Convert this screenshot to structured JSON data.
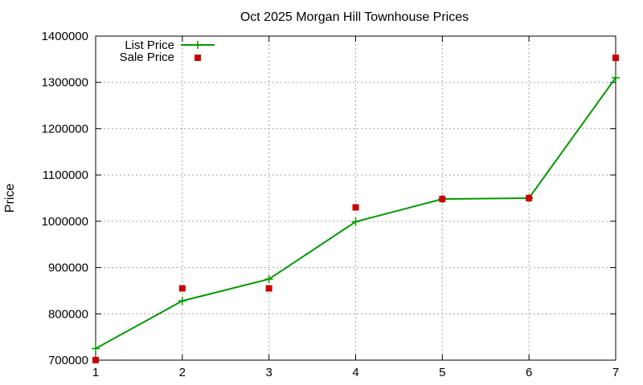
{
  "chart_data": {
    "type": "line",
    "title": "Oct 2025 Morgan Hill Townhouse Prices",
    "xlabel": "",
    "ylabel": "Price",
    "x": [
      1,
      2,
      3,
      4,
      5,
      6,
      7
    ],
    "xlim": [
      1,
      7
    ],
    "ylim": [
      700000,
      1400000
    ],
    "xticks": [
      1,
      2,
      3,
      4,
      5,
      6,
      7
    ],
    "yticks": [
      700000,
      800000,
      900000,
      1000000,
      1100000,
      1200000,
      1300000,
      1400000
    ],
    "grid": true,
    "legend_position": "top-left",
    "series": [
      {
        "name": "List Price",
        "style": "linespoints",
        "marker": "plus",
        "color": "#009900",
        "values": [
          725000,
          828000,
          875000,
          999000,
          1048000,
          1050000,
          1310000
        ]
      },
      {
        "name": "Sale Price",
        "style": "points",
        "marker": "square",
        "color": "#cc0000",
        "values": [
          700000,
          855000,
          855000,
          1030000,
          1048000,
          1050000,
          1353000
        ]
      }
    ]
  }
}
